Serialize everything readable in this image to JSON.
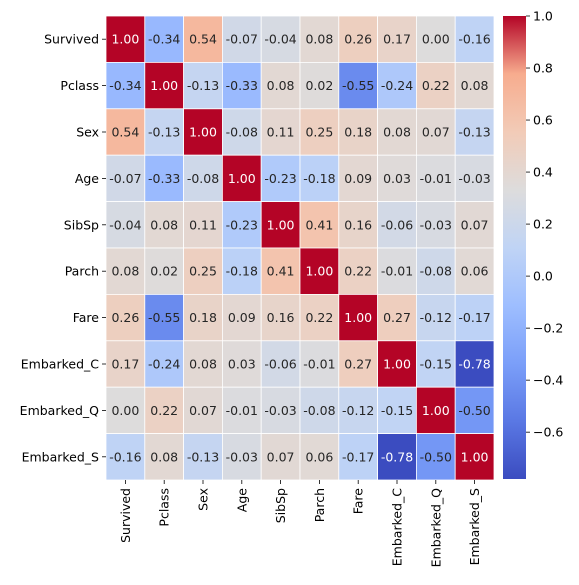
{
  "chart_data": {
    "type": "heatmap",
    "title": "",
    "xlabel": "",
    "ylabel": "",
    "labels": [
      "Survived",
      "Pclass",
      "Sex",
      "Age",
      "SibSp",
      "Parch",
      "Fare",
      "Embarked_C",
      "Embarked_Q",
      "Embarked_S"
    ],
    "matrix": [
      [
        1.0,
        -0.34,
        0.54,
        -0.07,
        -0.04,
        0.08,
        0.26,
        0.17,
        0.0,
        -0.16
      ],
      [
        -0.34,
        1.0,
        -0.13,
        -0.33,
        0.08,
        0.02,
        -0.55,
        -0.24,
        0.22,
        0.08
      ],
      [
        0.54,
        -0.13,
        1.0,
        -0.08,
        0.11,
        0.25,
        0.18,
        0.08,
        0.07,
        -0.13
      ],
      [
        -0.07,
        -0.33,
        -0.08,
        1.0,
        -0.23,
        -0.18,
        0.09,
        0.03,
        -0.01,
        -0.03
      ],
      [
        -0.04,
        0.08,
        0.11,
        -0.23,
        1.0,
        0.41,
        0.16,
        -0.06,
        -0.03,
        0.07
      ],
      [
        0.08,
        0.02,
        0.25,
        -0.18,
        0.41,
        1.0,
        0.22,
        -0.01,
        -0.08,
        0.06
      ],
      [
        0.26,
        -0.55,
        0.18,
        0.09,
        0.16,
        0.22,
        1.0,
        0.27,
        -0.12,
        -0.17
      ],
      [
        0.17,
        -0.24,
        0.08,
        0.03,
        -0.06,
        -0.01,
        0.27,
        1.0,
        -0.15,
        -0.78
      ],
      [
        0.0,
        0.22,
        0.07,
        -0.01,
        -0.03,
        -0.08,
        -0.12,
        -0.15,
        1.0,
        -0.5
      ],
      [
        -0.16,
        0.08,
        -0.13,
        -0.03,
        0.07,
        0.06,
        -0.17,
        -0.78,
        -0.5,
        1.0
      ]
    ],
    "value_format": "2 decimals",
    "colormap": "coolwarm",
    "color_range": [
      -0.78,
      1.0
    ],
    "colorbar_ticks": [
      "1.0",
      "0.8",
      "0.6",
      "0.4",
      "0.2",
      "0.0",
      "−0.2",
      "−0.4",
      "−0.6"
    ],
    "colorbar_tick_values": [
      1.0,
      0.8,
      0.6,
      0.4,
      0.2,
      0.0,
      -0.2,
      -0.4,
      -0.6
    ],
    "colorbar_position": "right",
    "cell_border_color": "#ffffff",
    "grid": false
  }
}
